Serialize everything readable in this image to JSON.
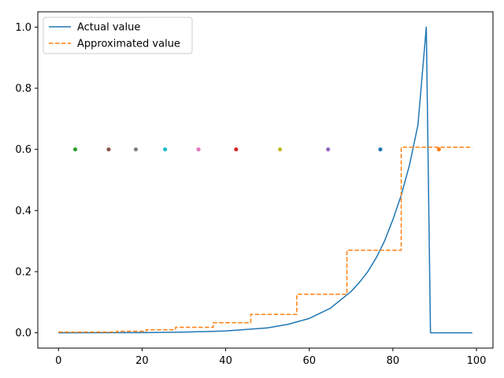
{
  "chart_data": {
    "type": "line",
    "title": "",
    "xlabel": "",
    "ylabel": "",
    "xlim": [
      -4.95,
      103.95
    ],
    "ylim": [
      -0.05,
      1.05
    ],
    "xticks": [
      0,
      20,
      40,
      60,
      80,
      100
    ],
    "yticks": [
      0.0,
      0.2,
      0.4,
      0.6,
      0.8,
      1.0
    ],
    "xtick_labels": [
      "0",
      "20",
      "40",
      "60",
      "80",
      "100"
    ],
    "ytick_labels": [
      "0.0",
      "0.2",
      "0.4",
      "0.6",
      "0.8",
      "1.0"
    ],
    "grid": false,
    "legend_position": "top-left",
    "series": [
      {
        "name": "Actual value",
        "style": "solid",
        "color": "#1f77b4",
        "x": [
          0,
          10,
          20,
          30,
          40,
          50,
          55,
          60,
          65,
          70,
          72,
          74,
          76,
          78,
          80,
          82,
          84,
          86,
          88,
          89,
          99
        ],
        "y": [
          0,
          0.0001,
          0.0005,
          0.002,
          0.006,
          0.016,
          0.028,
          0.047,
          0.08,
          0.135,
          0.165,
          0.2,
          0.245,
          0.3,
          0.37,
          0.45,
          0.55,
          0.68,
          1.0,
          0.0,
          0.0
        ]
      },
      {
        "name": "Approximated value",
        "style": "dashed",
        "color": "#ff7f0e",
        "x": [
          0,
          14,
          14,
          21,
          21,
          28,
          28,
          37,
          37,
          46,
          46,
          57,
          57,
          69,
          69,
          82,
          82,
          99
        ],
        "y": [
          0.002,
          0.002,
          0.005,
          0.005,
          0.01,
          0.01,
          0.018,
          0.018,
          0.033,
          0.033,
          0.06,
          0.06,
          0.126,
          0.126,
          0.27,
          0.27,
          0.607,
          0.607
        ]
      }
    ],
    "points": [
      {
        "x": 4,
        "y": 0.6,
        "color": "#2ca02c"
      },
      {
        "x": 12,
        "y": 0.6,
        "color": "#8c564b"
      },
      {
        "x": 18.5,
        "y": 0.6,
        "color": "#7f7f7f"
      },
      {
        "x": 25.5,
        "y": 0.6,
        "color": "#17becf"
      },
      {
        "x": 33.5,
        "y": 0.6,
        "color": "#e377c2"
      },
      {
        "x": 42.5,
        "y": 0.6,
        "color": "#d62728"
      },
      {
        "x": 53,
        "y": 0.6,
        "color": "#bcbd22"
      },
      {
        "x": 64.5,
        "y": 0.6,
        "color": "#9467bd"
      },
      {
        "x": 77,
        "y": 0.6,
        "color": "#1f77b4"
      },
      {
        "x": 91,
        "y": 0.6,
        "color": "#ff7f0e"
      }
    ]
  }
}
